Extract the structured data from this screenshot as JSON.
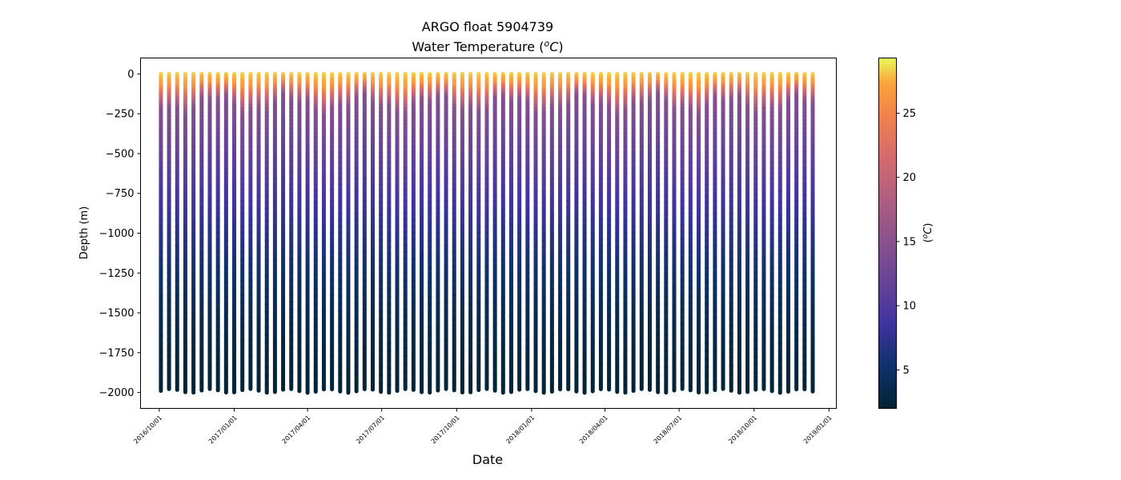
{
  "chart_data": {
    "type": "scatter",
    "title": "ARGO float 5904739",
    "subtitle_prefix": "Water Temperature (",
    "subtitle_unit_sup": "o",
    "subtitle_unit_main": "C",
    "subtitle_suffix": ")",
    "xlabel": "Date",
    "ylabel": "Depth (m)",
    "colorbar_label_prefix": "(",
    "colorbar_label_sup": "o",
    "colorbar_label_main": "C",
    "colorbar_label_suffix": ")",
    "colormap": "thermal",
    "colorbar_range": [
      2,
      29.3
    ],
    "colorbar_ticks": [
      "5",
      "10",
      "15",
      "20",
      "25"
    ],
    "colorbar_tick_values": [
      5,
      10,
      15,
      20,
      25
    ],
    "ylim": [
      -2100,
      100
    ],
    "yticks": [
      "0",
      "−250",
      "−500",
      "−750",
      "−1000",
      "−1250",
      "−1500",
      "−1750",
      "−2000"
    ],
    "ytick_values": [
      0,
      -250,
      -500,
      -750,
      -1000,
      -1250,
      -1500,
      -1750,
      -2000
    ],
    "xlim": [
      "2016-09-08",
      "2019-01-10"
    ],
    "xticks": [
      "2016/10/01",
      "2017/01/01",
      "2017/04/01",
      "2017/07/01",
      "2017/10/01",
      "2018/01/01",
      "2018/04/01",
      "2018/07/01",
      "2018/10/01",
      "2019/01/01"
    ],
    "xtick_dates": [
      "2016-10-01",
      "2017-01-01",
      "2017-04-01",
      "2017-07-01",
      "2017-10-01",
      "2018-01-01",
      "2018-04-01",
      "2018-07-01",
      "2018-10-01",
      "2019-01-01"
    ],
    "grid": false,
    "profiles": {
      "first_date": "2016-10-03",
      "interval_days": 10,
      "count": 81,
      "surface_depth": 0,
      "max_depth": -1990,
      "surface_temperature": 28.5,
      "deep_temperature": 2.3,
      "thermocline_depth": -150
    }
  }
}
